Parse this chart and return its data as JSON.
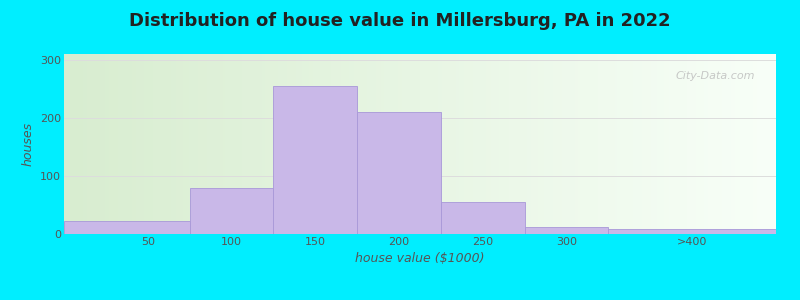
{
  "title": "Distribution of house value in Millersburg, PA in 2022",
  "xlabel": "house value ($1000)",
  "ylabel": "houses",
  "bar_left_edges": [
    0,
    75,
    125,
    175,
    225,
    275,
    325
  ],
  "bar_widths": [
    75,
    50,
    50,
    50,
    50,
    50,
    100
  ],
  "bar_heights": [
    22,
    80,
    255,
    210,
    55,
    12,
    8
  ],
  "bar_color": "#c9b8e8",
  "bar_edgecolor": "#a898d8",
  "xtick_positions": [
    50,
    100,
    150,
    200,
    250,
    300,
    375
  ],
  "xtick_labels": [
    "50",
    "100",
    "150",
    "200",
    "250",
    "300",
    ">400"
  ],
  "ytick_positions": [
    0,
    100,
    200,
    300
  ],
  "ytick_labels": [
    "0",
    "100",
    "200",
    "300"
  ],
  "ylim": [
    0,
    310
  ],
  "xlim": [
    0,
    425
  ],
  "bg_outer": "#00eeff",
  "bg_gradient_left": "#d8edd0",
  "bg_gradient_right": "#f8fff8",
  "title_fontsize": 13,
  "axis_label_fontsize": 9,
  "tick_fontsize": 8,
  "watermark": "City-Data.com",
  "grid_color": "#dddddd",
  "text_color": "#555555"
}
